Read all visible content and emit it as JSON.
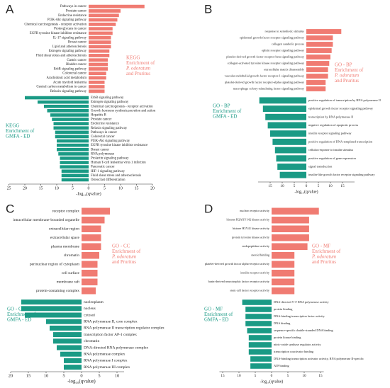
{
  "chart_data": [
    {
      "type": "bar",
      "panel": "A",
      "xlabel": "-log₁₀(qvalue)",
      "xlim": [
        -25,
        20
      ],
      "xticks": [
        {
          "value": -25,
          "label": "25"
        },
        {
          "value": -20,
          "label": "20"
        },
        {
          "value": -15,
          "label": "15"
        },
        {
          "value": -10,
          "label": "10"
        },
        {
          "value": -5,
          "label": "5"
        },
        0,
        5,
        10,
        15,
        20
      ],
      "series": [
        {
          "name": [
            "KEGG",
            "Enrichment of",
            {
              "text": "P. odoratum",
              "italic": true
            },
            "and Pruritus"
          ],
          "color": "#f07b72",
          "categories": [
            "Pathways in cancer",
            "Prostate cancer",
            "Endocrine resistance",
            "PI3K-Akt signaling pathway",
            "Chemical carcinogenesis - receptor activation",
            "Proteoglycans in cancer",
            "EGFR tyrosine kinase inhibitor resistance",
            "IL-17 signaling pathway",
            "Breast cancer",
            "Lipid and atherosclerosis",
            "Estrogen signaling pathway",
            "Fluid shear stress and atherosclerosis",
            "Gastric cancer",
            "Bladder cancer",
            "ErbB signaling pathway",
            "Colorectal cancer",
            "Arachidonic acid metabolism",
            "Acute myeloid leukemia",
            "Central carbon metabolism in cancer",
            "Relaxin signaling pathway"
          ],
          "values": [
            17.5,
            10,
            9.5,
            9,
            8.5,
            7.5,
            7.5,
            7,
            7,
            7,
            6.5,
            6.5,
            6,
            6,
            6,
            5.5,
            5.5,
            5,
            5,
            5
          ]
        },
        {
          "name": [
            "KEGG",
            "Enrichment of",
            "GMFA - ED"
          ],
          "color": "#1a9a85",
          "categories": [
            "ErbB signaling pathway",
            "Estrogen signaling pathway",
            "Chemical carcinogenesis - receptor activation",
            "Growth hormone synthesis,secretion and action",
            "Hepatitis B",
            "Prostate cancer",
            "Endocrine resistance",
            "Relaxin signaling pathway",
            "Pathways in cancer",
            "Colorectal cancer",
            "PI3K-Akt signaling pathway",
            "EGFR tyrosine kinase inhibitor resistance",
            "Breast cancer",
            "RNA polymerase",
            "Prolactin signaling pathway",
            "Human T-cell leukemia virus 1 infection",
            "Pancreatic cancer",
            "HIF-1 signaling pathway",
            "Fluid shear stress and atherosclerosis",
            "Osteoclast differentiation"
          ],
          "values": [
            -20,
            -16,
            -14,
            -13,
            -12,
            -11.5,
            -11,
            -11,
            -10.5,
            -10.5,
            -10,
            -10,
            -10,
            -9.5,
            -9,
            -9,
            -9,
            -8.5,
            -8.5,
            -8.5
          ]
        }
      ]
    },
    {
      "type": "bar",
      "panel": "B",
      "xlabel": "-log₁₀(qvalue)",
      "xlim": [
        -20,
        20
      ],
      "xticks": [
        {
          "value": -15,
          "label": "15"
        },
        {
          "value": -10,
          "label": "10"
        },
        {
          "value": -5,
          "label": "5"
        },
        0,
        5,
        10,
        15
      ],
      "series": [
        {
          "name": [
            "GO - BP",
            "Enrichment of",
            {
              "text": "P. odoratum",
              "italic": true
            },
            "and Pruritus"
          ],
          "color": "#f07b72",
          "categories": [
            "response to xenobiotic stimulus",
            "epidermal growth factor receptor signaling pathway",
            "collagen catabolic process",
            "ephrin receptor signaling pathway",
            "platelet-derived growth factor receptor-beta signaling pathway",
            "collagen-activated tyrosine kinase receptor signaling pathway",
            "extracellular matrix disassembly",
            "vascular endothelial growth factor receptor-1 signaling pathway",
            "platelet-derived growth factor receptor-alpha signaling pathway",
            "macrophage colony-stimulating factor signaling pathway"
          ],
          "values": [
            14.5,
            11,
            11,
            10.5,
            10,
            9.5,
            9,
            9,
            8,
            8
          ]
        },
        {
          "name": [
            "GO - BP",
            "Enrichment of",
            "GMFA - ED"
          ],
          "color": "#1a9a85",
          "categories": [
            "positive regulation of transcription by RNA polymerase II",
            "epidermal growth factor receptor signaling pathway",
            "transcription by RNA polymerase II",
            "negative regulation of apoptotic process",
            "insulin receptor signaling pathway",
            "positive regulation of DNA-templated transcription",
            "cellular response to insulin stimulus",
            "positive regulation of gene expression",
            "signal transduction",
            "insulin-like growth factor receptor signaling pathway"
          ],
          "values": [
            -19.5,
            -18,
            -17,
            -16,
            -15,
            -14,
            -13,
            -12.5,
            -12,
            -11
          ]
        }
      ]
    },
    {
      "type": "bar",
      "panel": "C",
      "xlabel": "-log₁₀(qvalue)",
      "xlim": [
        -20,
        12
      ],
      "xticks": [
        {
          "value": -20,
          "label": "20"
        },
        {
          "value": -15,
          "label": "15"
        },
        {
          "value": -10,
          "label": "10"
        },
        {
          "value": -5,
          "label": "5"
        },
        0,
        5,
        10
      ],
      "series": [
        {
          "name": [
            "GO - CC",
            "Enrichment of",
            {
              "text": "P. odoratum",
              "italic": true
            },
            "and Pruritus"
          ],
          "color": "#f07b72",
          "categories": [
            "receptor complex",
            "intracellular membrane-bounded organelle",
            "extracellular region",
            "extracellular space",
            "plasma membrane",
            "chromatin",
            "perinuclear region of cytoplasm",
            "cell surface",
            "membrane raft",
            "protein-containing complex"
          ],
          "values": [
            8,
            6.5,
            5.5,
            5.5,
            5.5,
            5,
            4.5,
            4.5,
            4.5,
            4
          ]
        },
        {
          "name": [
            "GO - CC",
            "Enrichment of",
            "GMFA - ED"
          ],
          "color": "#1a9a85",
          "categories": [
            "nucleoplasm",
            "nucleus",
            "cytosol",
            "RNA polymerase II, core complex",
            "RNA polymerase II transcription regulator complex",
            "transcription factor AP-1 complex",
            "chromatin",
            "DNA-directed RNA polymerase complex",
            "RNA polymerase complex",
            "RNA polymerase I complex",
            "RNA polymerase III complex"
          ],
          "values": [
            -17,
            -17,
            -16,
            -10,
            -9,
            -8,
            -8,
            -7,
            -6,
            -5,
            -5
          ]
        }
      ]
    },
    {
      "type": "bar",
      "panel": "D",
      "xlabel": "-log₁₀(qvalue)",
      "xlim": [
        -16,
        16
      ],
      "xticks": [
        {
          "value": -15,
          "label": "15"
        },
        {
          "value": -10,
          "label": "10"
        },
        {
          "value": -5,
          "label": "5"
        },
        0,
        5,
        10,
        15
      ],
      "series": [
        {
          "name": [
            "GO - MF",
            "Enrichment of",
            {
              "text": "P. odoratum",
              "italic": true
            },
            "and Pruritus"
          ],
          "color": "#f07b72",
          "categories": [
            "nuclear receptor activity",
            "histone H2AXY142 kinase activity",
            "histone H3Y41 kinase activity",
            "protein tyrosine kinase activity",
            "endopeptidase activity",
            "steroid binding",
            "platelet-derived growth factor alpha-receptor activity",
            "insulin receptor activity",
            "brain-derived neurotrophic factor receptor activity",
            "stem cell factor receptor activity"
          ],
          "values": [
            14.5,
            11.5,
            11.5,
            11.5,
            11,
            7,
            7,
            7,
            7,
            7
          ]
        },
        {
          "name": [
            "GO - MF",
            "Enrichment of",
            "GMFA - ED"
          ],
          "color": "#1a9a85",
          "categories": [
            "DNA-directed 5'-3' RNA polymerase activity",
            "protein binding",
            "DNA-binding transcription factor activity",
            "DNA binding",
            "sequence-specific double-stranded DNA binding",
            "protein kinase binding",
            "nitric-oxide synthase regulator activity",
            "transcription coactivator binding",
            "DNA-binding transcription activator activity, RNA polymerase II-specific",
            "ATP binding"
          ],
          "values": [
            -9,
            -8,
            -8,
            -8,
            -7.5,
            -7,
            -7,
            -7,
            -6.5,
            -6.5
          ]
        }
      ]
    }
  ]
}
